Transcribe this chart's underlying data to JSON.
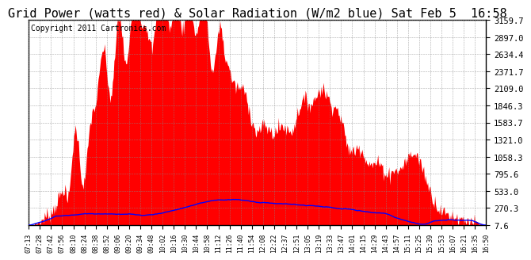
{
  "title": "Grid Power (watts red) & Solar Radiation (W/m2 blue) Sat Feb 5  16:58",
  "copyright": "Copyright 2011 Cartronics.com",
  "yticks": [
    7.6,
    270.3,
    533.0,
    795.6,
    1058.3,
    1321.0,
    1583.7,
    1846.3,
    2109.0,
    2371.7,
    2634.4,
    2897.0,
    3159.7
  ],
  "ymin": 7.6,
  "ymax": 3159.7,
  "fill_color": "red",
  "line_color": "blue",
  "background_color": "white",
  "plot_bg_color": "white",
  "grid_color": "#888888",
  "title_fontsize": 11,
  "copyright_fontsize": 7,
  "xtick_labels": [
    "07:13",
    "07:28",
    "07:42",
    "07:56",
    "08:10",
    "08:24",
    "08:38",
    "08:52",
    "09:06",
    "09:20",
    "09:34",
    "09:48",
    "10:02",
    "10:16",
    "10:30",
    "10:44",
    "10:58",
    "11:12",
    "11:26",
    "11:40",
    "11:54",
    "12:08",
    "12:22",
    "12:37",
    "12:51",
    "13:05",
    "13:19",
    "13:33",
    "13:47",
    "14:01",
    "14:15",
    "14:29",
    "14:43",
    "14:57",
    "15:11",
    "15:25",
    "15:39",
    "15:53",
    "16:07",
    "16:21",
    "16:35",
    "16:50"
  ],
  "num_points": 580
}
